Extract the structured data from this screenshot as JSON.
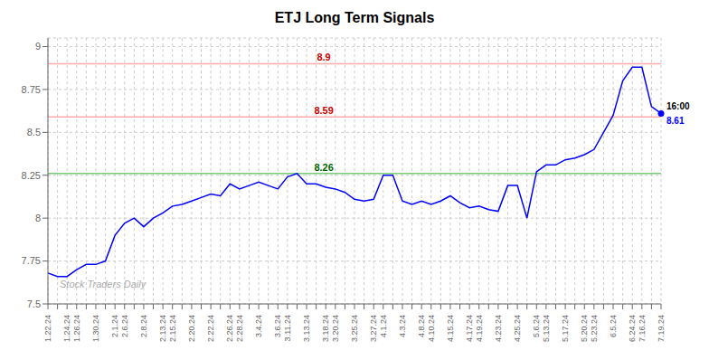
{
  "chart_data": {
    "type": "line",
    "title": "ETJ Long Term Signals",
    "watermark": "Stock Traders Daily",
    "categories": [
      "1.22.24",
      null,
      "1.24.24",
      "1.26.24",
      null,
      "1.30.24",
      null,
      "2.1.24",
      "2.6.24",
      null,
      "2.8.24",
      null,
      "2.13.24",
      "2.15.24",
      null,
      "2.20.24",
      null,
      "2.22.24",
      null,
      "2.26.24",
      "2.28.24",
      null,
      "3.4.24",
      null,
      "3.6.24",
      "3.11.24",
      null,
      "3.13.24",
      null,
      "3.18.24",
      "3.20.24",
      null,
      "3.25.24",
      null,
      "3.27.24",
      "4.1.24",
      null,
      "4.3.24",
      null,
      "4.8.24",
      "4.10.24",
      null,
      "4.15.24",
      null,
      "4.17.24",
      "4.19.24",
      null,
      "4.23.24",
      null,
      "4.25.24",
      null,
      "5.6.24",
      "5.13.24",
      null,
      "5.17.24",
      null,
      "5.20.24",
      "5.23.24",
      null,
      "6.5.24",
      null,
      "6.24.24",
      "7.16.24",
      null,
      "7.19.24"
    ],
    "values": [
      7.68,
      7.66,
      7.66,
      7.7,
      7.73,
      7.73,
      7.75,
      7.9,
      7.97,
      8.0,
      7.95,
      8.0,
      8.03,
      8.07,
      8.08,
      8.1,
      8.12,
      8.14,
      8.13,
      8.2,
      8.17,
      8.19,
      8.21,
      8.19,
      8.17,
      8.24,
      8.26,
      8.2,
      8.2,
      8.18,
      8.17,
      8.15,
      8.11,
      8.1,
      8.11,
      8.25,
      8.25,
      8.1,
      8.08,
      8.1,
      8.08,
      8.1,
      8.13,
      8.09,
      8.06,
      8.07,
      8.05,
      8.04,
      8.19,
      8.19,
      8.0,
      8.27,
      8.31,
      8.31,
      8.34,
      8.35,
      8.37,
      8.4,
      8.5,
      8.6,
      8.8,
      8.88,
      8.88,
      8.65,
      8.61
    ],
    "color": "blue",
    "marker": "last",
    "hlines": [
      {
        "y": 8.9,
        "label": "8.9",
        "color": "#ffaaaa",
        "label_color": "#cc0000"
      },
      {
        "y": 8.59,
        "label": "8.59",
        "color": "#ffaaaa",
        "label_color": "#cc0000"
      },
      {
        "y": 8.26,
        "label": "8.26",
        "color": "#77cc77",
        "label_color": "#006600"
      }
    ],
    "annotations": [
      {
        "text": "16:00",
        "x": "7.19.24",
        "y": 8.61,
        "color": "black"
      },
      {
        "text": "8.61",
        "x": "7.19.24",
        "y": 8.61,
        "color": "blue"
      }
    ],
    "ylim": [
      7.5,
      9.05
    ],
    "yticks": [
      7.5,
      7.75,
      8,
      8.25,
      8.5,
      8.75,
      9
    ],
    "grid": true
  }
}
